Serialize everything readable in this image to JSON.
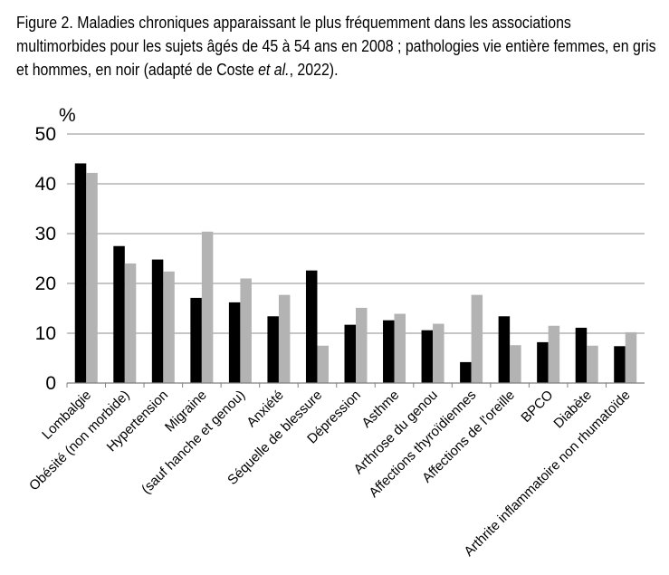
{
  "caption": {
    "part1": "Figure 2. Maladies chroniques apparaissant le plus fréquemment dans les associations multimorbides pour les sujets âgés de 45 à 54 ans en 2008 ; pathologies vie entière femmes, en gris et hommes, en noir (adapté de Coste ",
    "italic": "et al.",
    "part2": ", 2022)."
  },
  "chart_data": {
    "type": "bar",
    "title": "",
    "xlabel": "",
    "ylabel": "%",
    "ylim": [
      0,
      50
    ],
    "yticks": [
      0,
      10,
      20,
      30,
      40,
      50
    ],
    "grid": true,
    "legend": "none",
    "categories": [
      "Lombalgie",
      "Obésité (non morbide)",
      "Hypertension",
      "Migraine",
      "(sauf hanche et genou)",
      "Anxiété",
      "Séquelle de blessure",
      "Dépression",
      "Asthme",
      "Arthrose du genou",
      "Affections thyroïdiennes",
      "Affections de l'oreille",
      "BPCO",
      "Diabète",
      "Arthrite inflammatoire non rhumatoïde"
    ],
    "series": [
      {
        "values": [
          44.1,
          27.5,
          24.8,
          17.1,
          16.2,
          13.4,
          22.6,
          11.7,
          12.6,
          10.6,
          4.2,
          13.4,
          8.2,
          11.1,
          7.4
        ],
        "color": "#000000"
      },
      {
        "values": [
          42.2,
          24.0,
          22.4,
          30.4,
          21.0,
          17.7,
          7.5,
          15.1,
          13.9,
          11.9,
          17.7,
          7.6,
          11.5,
          7.5,
          10.2
        ],
        "color": "#b3b3b3"
      }
    ]
  }
}
